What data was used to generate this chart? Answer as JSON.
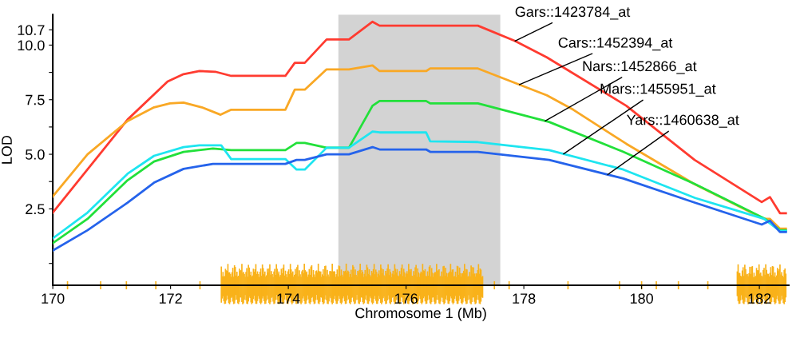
{
  "chart_data": {
    "type": "line",
    "xlabel": "Chromosome 1 (Mb)",
    "ylabel": "LOD",
    "xlim": [
      170,
      182.5
    ],
    "xticks": [
      170,
      172,
      174,
      176,
      178,
      180,
      182
    ],
    "ylim": [
      -1,
      11.4
    ],
    "yticks": [
      {
        "value": 0,
        "label": null
      },
      {
        "value": 2.5,
        "label": "2.5"
      },
      {
        "value": 3.75,
        "label": null
      },
      {
        "value": 5,
        "label": "5.0"
      },
      {
        "value": 6.25,
        "label": null
      },
      {
        "value": 7.5,
        "label": "7.5"
      },
      {
        "value": 8.75,
        "label": null
      },
      {
        "value": 10,
        "label": "10.0"
      },
      {
        "value": 10.7,
        "label": "10.7"
      }
    ],
    "bands": [
      {
        "axis": "x",
        "from": 174.85,
        "to": 177.6,
        "color": "#d3d3d3"
      }
    ],
    "grid": false,
    "legend": false,
    "marker": "none",
    "line_style": "solid",
    "series": [
      {
        "name": "Gars::1423784_at",
        "color": "#ff3b30",
        "x": [
          170,
          171.27,
          171.95,
          172.22,
          172.49,
          172.76,
          173.03,
          173.95,
          174.11,
          174.28,
          174.65,
          175.03,
          175.43,
          175.55,
          177.22,
          177.85,
          178.39,
          179.74,
          180.9,
          182.04,
          182.18,
          182.35,
          182.45
        ],
        "values": [
          2.33,
          6.59,
          8.33,
          8.67,
          8.81,
          8.78,
          8.59,
          8.59,
          9.19,
          9.19,
          10.26,
          10.26,
          11.07,
          10.89,
          10.89,
          10.19,
          9.44,
          7.22,
          4.74,
          2.81,
          3.04,
          2.3,
          2.3
        ]
      },
      {
        "name": "Cars::1452394_at",
        "color": "#f9a825",
        "x": [
          170,
          170.59,
          171.27,
          171.72,
          171.99,
          172.22,
          172.53,
          172.85,
          173.03,
          173.95,
          174.11,
          174.28,
          174.65,
          175.03,
          175.43,
          175.55,
          176.34,
          176.41,
          177.22,
          178.39,
          178.84,
          179.74,
          180.9,
          182.08,
          182.18,
          182.35,
          182.45
        ],
        "values": [
          3.07,
          5.0,
          6.52,
          7.15,
          7.33,
          7.37,
          7.15,
          6.81,
          7.04,
          7.04,
          7.96,
          7.96,
          8.89,
          8.89,
          9.07,
          8.81,
          8.81,
          8.93,
          8.93,
          7.7,
          7.04,
          5.48,
          3.63,
          2.04,
          2.04,
          1.59,
          1.59
        ]
      },
      {
        "name": "Nars::1452866_at",
        "color": "#22e03a",
        "x": [
          170,
          170.59,
          171.27,
          171.72,
          172.22,
          172.72,
          173.03,
          173.95,
          174.14,
          174.28,
          174.65,
          175.03,
          175.43,
          175.55,
          176.34,
          176.41,
          177.22,
          178.43,
          179.69,
          180.91,
          182.08,
          182.18,
          182.35,
          182.45
        ],
        "values": [
          0.93,
          2.04,
          3.81,
          4.67,
          5.11,
          5.26,
          5.19,
          5.19,
          5.52,
          5.52,
          5.3,
          5.3,
          7.22,
          7.44,
          7.44,
          7.33,
          7.33,
          6.48,
          5.11,
          3.63,
          2.07,
          1.89,
          1.52,
          1.52
        ]
      },
      {
        "name": "Mars::1455951_at",
        "color": "#1ee5f0",
        "x": [
          170,
          170.59,
          171.27,
          171.72,
          172.22,
          172.49,
          172.86,
          173.03,
          173.95,
          174.14,
          174.28,
          174.65,
          175.03,
          175.43,
          175.55,
          176.34,
          176.41,
          177.22,
          178.43,
          179.69,
          180.91,
          182.08,
          182.35,
          182.45
        ],
        "values": [
          1.15,
          2.33,
          4.11,
          4.93,
          5.33,
          5.41,
          5.41,
          4.78,
          4.78,
          4.3,
          4.3,
          5.3,
          5.3,
          6.04,
          6.0,
          6.0,
          5.59,
          5.56,
          5.19,
          4.3,
          3.0,
          2.04,
          1.48,
          1.48
        ]
      },
      {
        "name": "Yars::1460638_at",
        "color": "#2563eb",
        "x": [
          170,
          170.59,
          171.27,
          171.72,
          172.22,
          172.72,
          173.95,
          174.14,
          174.28,
          174.65,
          175.03,
          175.43,
          175.55,
          176.34,
          176.41,
          177.22,
          178.43,
          179.69,
          180.91,
          182.04,
          182.18,
          182.35,
          182.45
        ],
        "values": [
          0.59,
          1.52,
          2.78,
          3.7,
          4.33,
          4.56,
          4.56,
          4.74,
          4.74,
          5.0,
          5.0,
          5.33,
          5.22,
          5.22,
          5.11,
          5.11,
          4.74,
          3.89,
          2.78,
          1.78,
          1.96,
          1.44,
          1.44
        ]
      }
    ]
  }
}
